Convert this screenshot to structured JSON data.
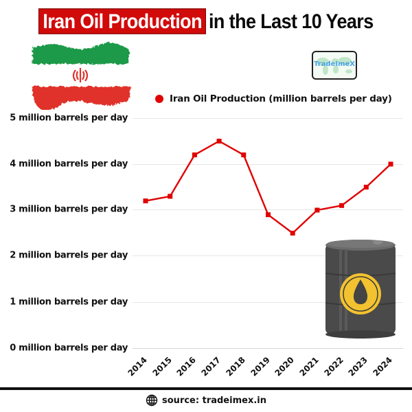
{
  "title": {
    "highlight": "Iran Oil Production",
    "rest": "in the Last 10 Years",
    "highlight_color": "#d10a0a"
  },
  "logo": {
    "text": "TradeImeX"
  },
  "legend": {
    "label": "Iran Oil Production (million barrels per day)",
    "color": "#e00000"
  },
  "y_axis": {
    "ticks": [
      "5 million barrels per day",
      "4 million barrels per day",
      "3 million barrels per day",
      "2 million barrels per day",
      "1 million barrels per day",
      "0 million barrels per day"
    ]
  },
  "x_axis": {
    "ticks": [
      "2014",
      "2015",
      "2016",
      "2017",
      "2018",
      "2019",
      "2020",
      "2021",
      "2022",
      "2023",
      "2024"
    ]
  },
  "footer": {
    "source": "source: tradeimex.in",
    "icon": "globe-icon"
  },
  "chart_data": {
    "type": "line",
    "title": "Iran Oil Production in the Last 10 Years",
    "categories": [
      "2014",
      "2015",
      "2016",
      "2017",
      "2018",
      "2019",
      "2020",
      "2021",
      "2022",
      "2023",
      "2024"
    ],
    "series": [
      {
        "name": "Iran Oil Production (million barrels per day)",
        "color": "#e00000",
        "values": [
          3.2,
          3.3,
          4.2,
          4.5,
          4.2,
          2.9,
          2.5,
          3.0,
          3.1,
          3.5,
          4.0
        ]
      }
    ],
    "xlabel": "",
    "ylabel": "",
    "ylim": [
      0,
      5
    ],
    "ytick_labels": [
      "0 million barrels per day",
      "1 million barrels per day",
      "2 million barrels per day",
      "3 million barrels per day",
      "4 million barrels per day",
      "5 million barrels per day"
    ],
    "grid": true,
    "legend_position": "top"
  }
}
